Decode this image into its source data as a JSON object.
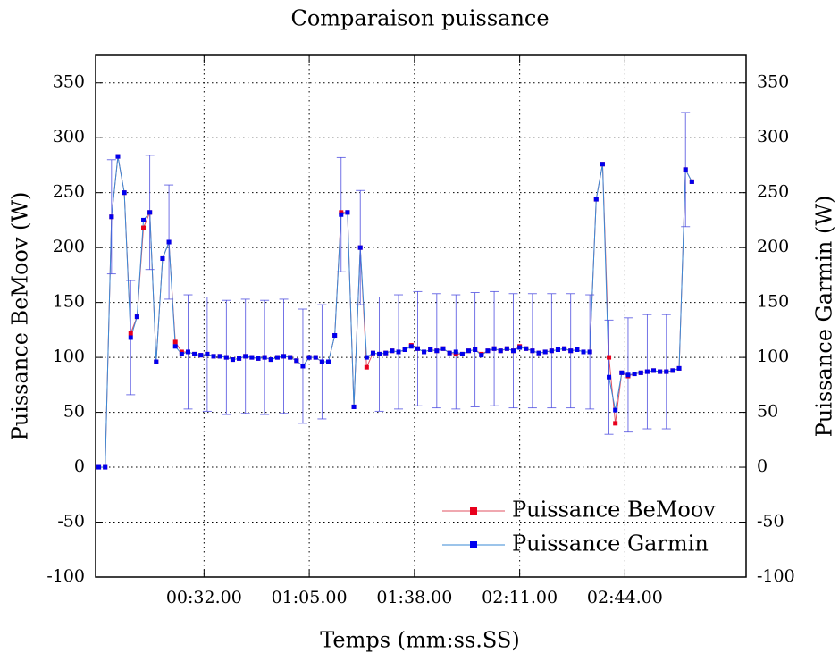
{
  "chart_data": {
    "type": "line",
    "title": "Comparaison puissance",
    "xlabel": "Temps (mm:ss.SS)",
    "ylabel": "Puissance BeMoov (W)",
    "y2label": "Puissance Garmin (W)",
    "xlim": [
      -2,
      202
    ],
    "xticks": [
      {
        "value": 32,
        "label": "00:32.00"
      },
      {
        "value": 65,
        "label": "01:05.00"
      },
      {
        "value": 98,
        "label": "01:38.00"
      },
      {
        "value": 131,
        "label": "02:11.00"
      },
      {
        "value": 164,
        "label": "02:44.00"
      }
    ],
    "ylim": [
      -100,
      375
    ],
    "yticks": [
      -100,
      -50,
      0,
      50,
      100,
      150,
      200,
      250,
      300,
      350
    ],
    "y2lim": [
      -100,
      375
    ],
    "y2ticks": [
      -100,
      -50,
      0,
      50,
      100,
      150,
      200,
      250,
      300,
      350
    ],
    "grid": true,
    "legend": "lower right",
    "x": [
      -1,
      1,
      3,
      5,
      7,
      9,
      11,
      13,
      15,
      17,
      19,
      21,
      23,
      25,
      27,
      29,
      31,
      33,
      35,
      37,
      39,
      41,
      43,
      45,
      47,
      49,
      51,
      53,
      55,
      57,
      59,
      61,
      63,
      65,
      67,
      69,
      71,
      73,
      75,
      77,
      79,
      81,
      83,
      85,
      87,
      89,
      91,
      93,
      95,
      97,
      99,
      101,
      103,
      105,
      107,
      109,
      111,
      113,
      115,
      117,
      119,
      121,
      123,
      125,
      127,
      129,
      131,
      133,
      135,
      137,
      139,
      141,
      143,
      145,
      147,
      149,
      151,
      153,
      155,
      157,
      159,
      161,
      163,
      165,
      167,
      169,
      171,
      173,
      175,
      177,
      179,
      181,
      183,
      185
    ],
    "series": [
      {
        "name": "Puissance BeMoov",
        "color": "#e8001c",
        "line_color": "#e05060",
        "values": [
          0,
          0,
          228,
          283,
          250,
          122,
          137,
          218,
          232,
          96,
          190,
          205,
          114,
          105,
          105,
          103,
          102,
          103,
          101,
          101,
          100,
          98,
          99,
          101,
          100,
          99,
          100,
          98,
          100,
          101,
          100,
          97,
          92,
          100,
          100,
          96,
          96,
          120,
          232,
          232,
          55,
          200,
          91,
          104,
          103,
          104,
          106,
          105,
          107,
          111,
          108,
          105,
          107,
          106,
          108,
          104,
          103,
          103,
          106,
          107,
          103,
          106,
          108,
          106,
          108,
          106,
          110,
          108,
          106,
          104,
          105,
          106,
          107,
          108,
          106,
          107,
          105,
          105,
          244,
          276,
          100,
          40,
          86,
          83,
          85,
          86,
          87,
          88,
          87,
          87,
          88,
          90,
          271,
          260
        ]
      },
      {
        "name": "Puissance Garmin",
        "color": "#0000ee",
        "line_color": "#3a8ad6",
        "values": [
          0,
          0,
          228,
          283,
          250,
          118,
          137,
          225,
          232,
          96,
          190,
          205,
          110,
          103,
          105,
          103,
          102,
          103,
          101,
          101,
          100,
          98,
          99,
          101,
          100,
          99,
          100,
          98,
          100,
          101,
          100,
          97,
          92,
          100,
          100,
          96,
          96,
          120,
          230,
          232,
          55,
          200,
          100,
          104,
          103,
          104,
          106,
          105,
          107,
          110,
          108,
          105,
          107,
          106,
          108,
          104,
          105,
          103,
          106,
          107,
          102,
          106,
          108,
          106,
          108,
          106,
          109,
          108,
          106,
          104,
          105,
          106,
          107,
          108,
          106,
          107,
          105,
          105,
          244,
          276,
          82,
          52,
          86,
          84,
          85,
          86,
          87,
          88,
          87,
          87,
          88,
          90,
          271,
          260
        ],
        "errors": [
          null,
          null,
          52,
          null,
          null,
          52,
          null,
          null,
          52,
          null,
          null,
          52,
          null,
          null,
          52,
          null,
          null,
          52,
          null,
          null,
          52,
          null,
          null,
          52,
          null,
          null,
          52,
          null,
          null,
          52,
          null,
          null,
          52,
          null,
          null,
          52,
          null,
          null,
          52,
          null,
          null,
          52,
          null,
          null,
          52,
          null,
          null,
          52,
          null,
          null,
          52,
          null,
          null,
          52,
          null,
          null,
          52,
          null,
          null,
          52,
          null,
          null,
          52,
          null,
          null,
          52,
          null,
          null,
          52,
          null,
          null,
          52,
          null,
          null,
          52,
          null,
          null,
          52,
          null,
          null,
          52,
          null,
          null,
          52,
          null,
          null,
          52,
          null,
          null,
          52,
          null,
          null,
          52,
          null
        ]
      }
    ]
  }
}
